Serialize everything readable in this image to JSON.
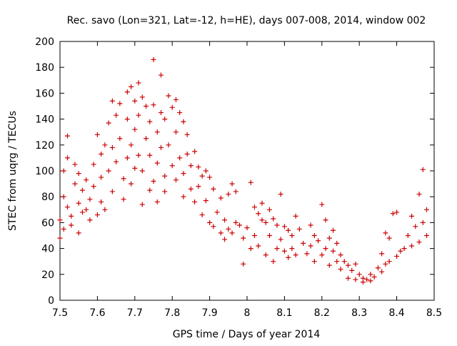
{
  "chart_data": {
    "type": "scatter",
    "title": "Rec. savo (Lon=321, Lat=-12, h=HE), days 007-008, 2014, window 002",
    "xlabel": "GPS time / Days of year 2014",
    "ylabel": "STEC from uqrg / TECUs",
    "xlim": [
      7.5,
      8.5
    ],
    "ylim": [
      0,
      200
    ],
    "x_ticks": [
      "7.5",
      "7.6",
      "7.7",
      "7.8",
      "7.9",
      "8",
      "8.1",
      "8.2",
      "8.3",
      "8.4",
      "8.5"
    ],
    "y_ticks": [
      "0",
      "20",
      "40",
      "60",
      "80",
      "100",
      "120",
      "140",
      "160",
      "180",
      "200"
    ],
    "marker": "+",
    "color": "#cc0000",
    "series": [
      {
        "name": "STEC",
        "points": [
          [
            7.5,
            62
          ],
          [
            7.5,
            48
          ],
          [
            7.51,
            55
          ],
          [
            7.51,
            80
          ],
          [
            7.51,
            100
          ],
          [
            7.52,
            127
          ],
          [
            7.52,
            110
          ],
          [
            7.52,
            72
          ],
          [
            7.53,
            58
          ],
          [
            7.53,
            65
          ],
          [
            7.54,
            105
          ],
          [
            7.54,
            90
          ],
          [
            7.55,
            75
          ],
          [
            7.55,
            52
          ],
          [
            7.55,
            98
          ],
          [
            7.56,
            85
          ],
          [
            7.56,
            68
          ],
          [
            7.57,
            70
          ],
          [
            7.57,
            93
          ],
          [
            7.58,
            62
          ],
          [
            7.58,
            78
          ],
          [
            7.59,
            88
          ],
          [
            7.59,
            105
          ],
          [
            7.6,
            128
          ],
          [
            7.6,
            66
          ],
          [
            7.61,
            113
          ],
          [
            7.61,
            95
          ],
          [
            7.61,
            76
          ],
          [
            7.62,
            120
          ],
          [
            7.62,
            70
          ],
          [
            7.63,
            137
          ],
          [
            7.63,
            100
          ],
          [
            7.64,
            154
          ],
          [
            7.64,
            84
          ],
          [
            7.64,
            118
          ],
          [
            7.65,
            143
          ],
          [
            7.65,
            107
          ],
          [
            7.66,
            152
          ],
          [
            7.66,
            125
          ],
          [
            7.67,
            94
          ],
          [
            7.67,
            78
          ],
          [
            7.68,
            161
          ],
          [
            7.68,
            140
          ],
          [
            7.68,
            110
          ],
          [
            7.69,
            165
          ],
          [
            7.69,
            120
          ],
          [
            7.69,
            90
          ],
          [
            7.7,
            154
          ],
          [
            7.7,
            132
          ],
          [
            7.7,
            102
          ],
          [
            7.71,
            168
          ],
          [
            7.71,
            143
          ],
          [
            7.71,
            112
          ],
          [
            7.72,
            157
          ],
          [
            7.72,
            100
          ],
          [
            7.72,
            74
          ],
          [
            7.73,
            150
          ],
          [
            7.73,
            125
          ],
          [
            7.74,
            138
          ],
          [
            7.74,
            112
          ],
          [
            7.74,
            85
          ],
          [
            7.75,
            186
          ],
          [
            7.75,
            151
          ],
          [
            7.75,
            92
          ],
          [
            7.76,
            130
          ],
          [
            7.76,
            106
          ],
          [
            7.76,
            76
          ],
          [
            7.77,
            174
          ],
          [
            7.77,
            145
          ],
          [
            7.77,
            118
          ],
          [
            7.78,
            140
          ],
          [
            7.78,
            96
          ],
          [
            7.78,
            84
          ],
          [
            7.79,
            158
          ],
          [
            7.79,
            120
          ],
          [
            7.8,
            149
          ],
          [
            7.8,
            104
          ],
          [
            7.81,
            155
          ],
          [
            7.81,
            130
          ],
          [
            7.81,
            93
          ],
          [
            7.82,
            145
          ],
          [
            7.82,
            110
          ],
          [
            7.83,
            138
          ],
          [
            7.83,
            98
          ],
          [
            7.83,
            80
          ],
          [
            7.84,
            128
          ],
          [
            7.84,
            113
          ],
          [
            7.85,
            104
          ],
          [
            7.85,
            86
          ],
          [
            7.86,
            115
          ],
          [
            7.86,
            76
          ],
          [
            7.87,
            103
          ],
          [
            7.87,
            88
          ],
          [
            7.88,
            96
          ],
          [
            7.88,
            66
          ],
          [
            7.89,
            100
          ],
          [
            7.89,
            77
          ],
          [
            7.9,
            95
          ],
          [
            7.9,
            60
          ],
          [
            7.91,
            86
          ],
          [
            7.91,
            57
          ],
          [
            7.92,
            68
          ],
          [
            7.93,
            79
          ],
          [
            7.93,
            52
          ],
          [
            7.94,
            62
          ],
          [
            7.94,
            47
          ],
          [
            7.95,
            82
          ],
          [
            7.95,
            55
          ],
          [
            7.96,
            90
          ],
          [
            7.96,
            52
          ],
          [
            7.97,
            84
          ],
          [
            7.97,
            60
          ],
          [
            7.98,
            58
          ],
          [
            7.99,
            28
          ],
          [
            7.99,
            48
          ],
          [
            8.0,
            56
          ],
          [
            8.01,
            91
          ],
          [
            8.01,
            40
          ],
          [
            8.02,
            72
          ],
          [
            8.02,
            50
          ],
          [
            8.03,
            67
          ],
          [
            8.03,
            42
          ],
          [
            8.04,
            75
          ],
          [
            8.04,
            62
          ],
          [
            8.05,
            60
          ],
          [
            8.05,
            35
          ],
          [
            8.06,
            70
          ],
          [
            8.06,
            50
          ],
          [
            8.07,
            63
          ],
          [
            8.07,
            30
          ],
          [
            8.08,
            58
          ],
          [
            8.08,
            40
          ],
          [
            8.09,
            82
          ],
          [
            8.09,
            47
          ],
          [
            8.1,
            57
          ],
          [
            8.1,
            38
          ],
          [
            8.11,
            54
          ],
          [
            8.11,
            33
          ],
          [
            8.12,
            50
          ],
          [
            8.12,
            40
          ],
          [
            8.13,
            65
          ],
          [
            8.13,
            35
          ],
          [
            8.14,
            55
          ],
          [
            8.15,
            44
          ],
          [
            8.16,
            36
          ],
          [
            8.17,
            58
          ],
          [
            8.17,
            42
          ],
          [
            8.18,
            50
          ],
          [
            8.18,
            30
          ],
          [
            8.19,
            46
          ],
          [
            8.2,
            74
          ],
          [
            8.2,
            35
          ],
          [
            8.21,
            62
          ],
          [
            8.21,
            40
          ],
          [
            8.22,
            48
          ],
          [
            8.22,
            27
          ],
          [
            8.23,
            54
          ],
          [
            8.23,
            38
          ],
          [
            8.24,
            44
          ],
          [
            8.24,
            30
          ],
          [
            8.25,
            35
          ],
          [
            8.25,
            24
          ],
          [
            8.26,
            30
          ],
          [
            8.27,
            27
          ],
          [
            8.27,
            17
          ],
          [
            8.28,
            23
          ],
          [
            8.29,
            28
          ],
          [
            8.29,
            16
          ],
          [
            8.3,
            20
          ],
          [
            8.31,
            14
          ],
          [
            8.31,
            17
          ],
          [
            8.32,
            16
          ],
          [
            8.33,
            15
          ],
          [
            8.33,
            20
          ],
          [
            8.34,
            18
          ],
          [
            8.35,
            25
          ],
          [
            8.36,
            22
          ],
          [
            8.36,
            36
          ],
          [
            8.37,
            28
          ],
          [
            8.37,
            52
          ],
          [
            8.38,
            30
          ],
          [
            8.38,
            48
          ],
          [
            8.39,
            67
          ],
          [
            8.4,
            68
          ],
          [
            8.4,
            34
          ],
          [
            8.41,
            38
          ],
          [
            8.42,
            40
          ],
          [
            8.43,
            50
          ],
          [
            8.44,
            42
          ],
          [
            8.44,
            65
          ],
          [
            8.45,
            57
          ],
          [
            8.46,
            82
          ],
          [
            8.46,
            45
          ],
          [
            8.47,
            101
          ],
          [
            8.47,
            60
          ],
          [
            8.48,
            70
          ],
          [
            8.48,
            50
          ]
        ]
      }
    ]
  }
}
